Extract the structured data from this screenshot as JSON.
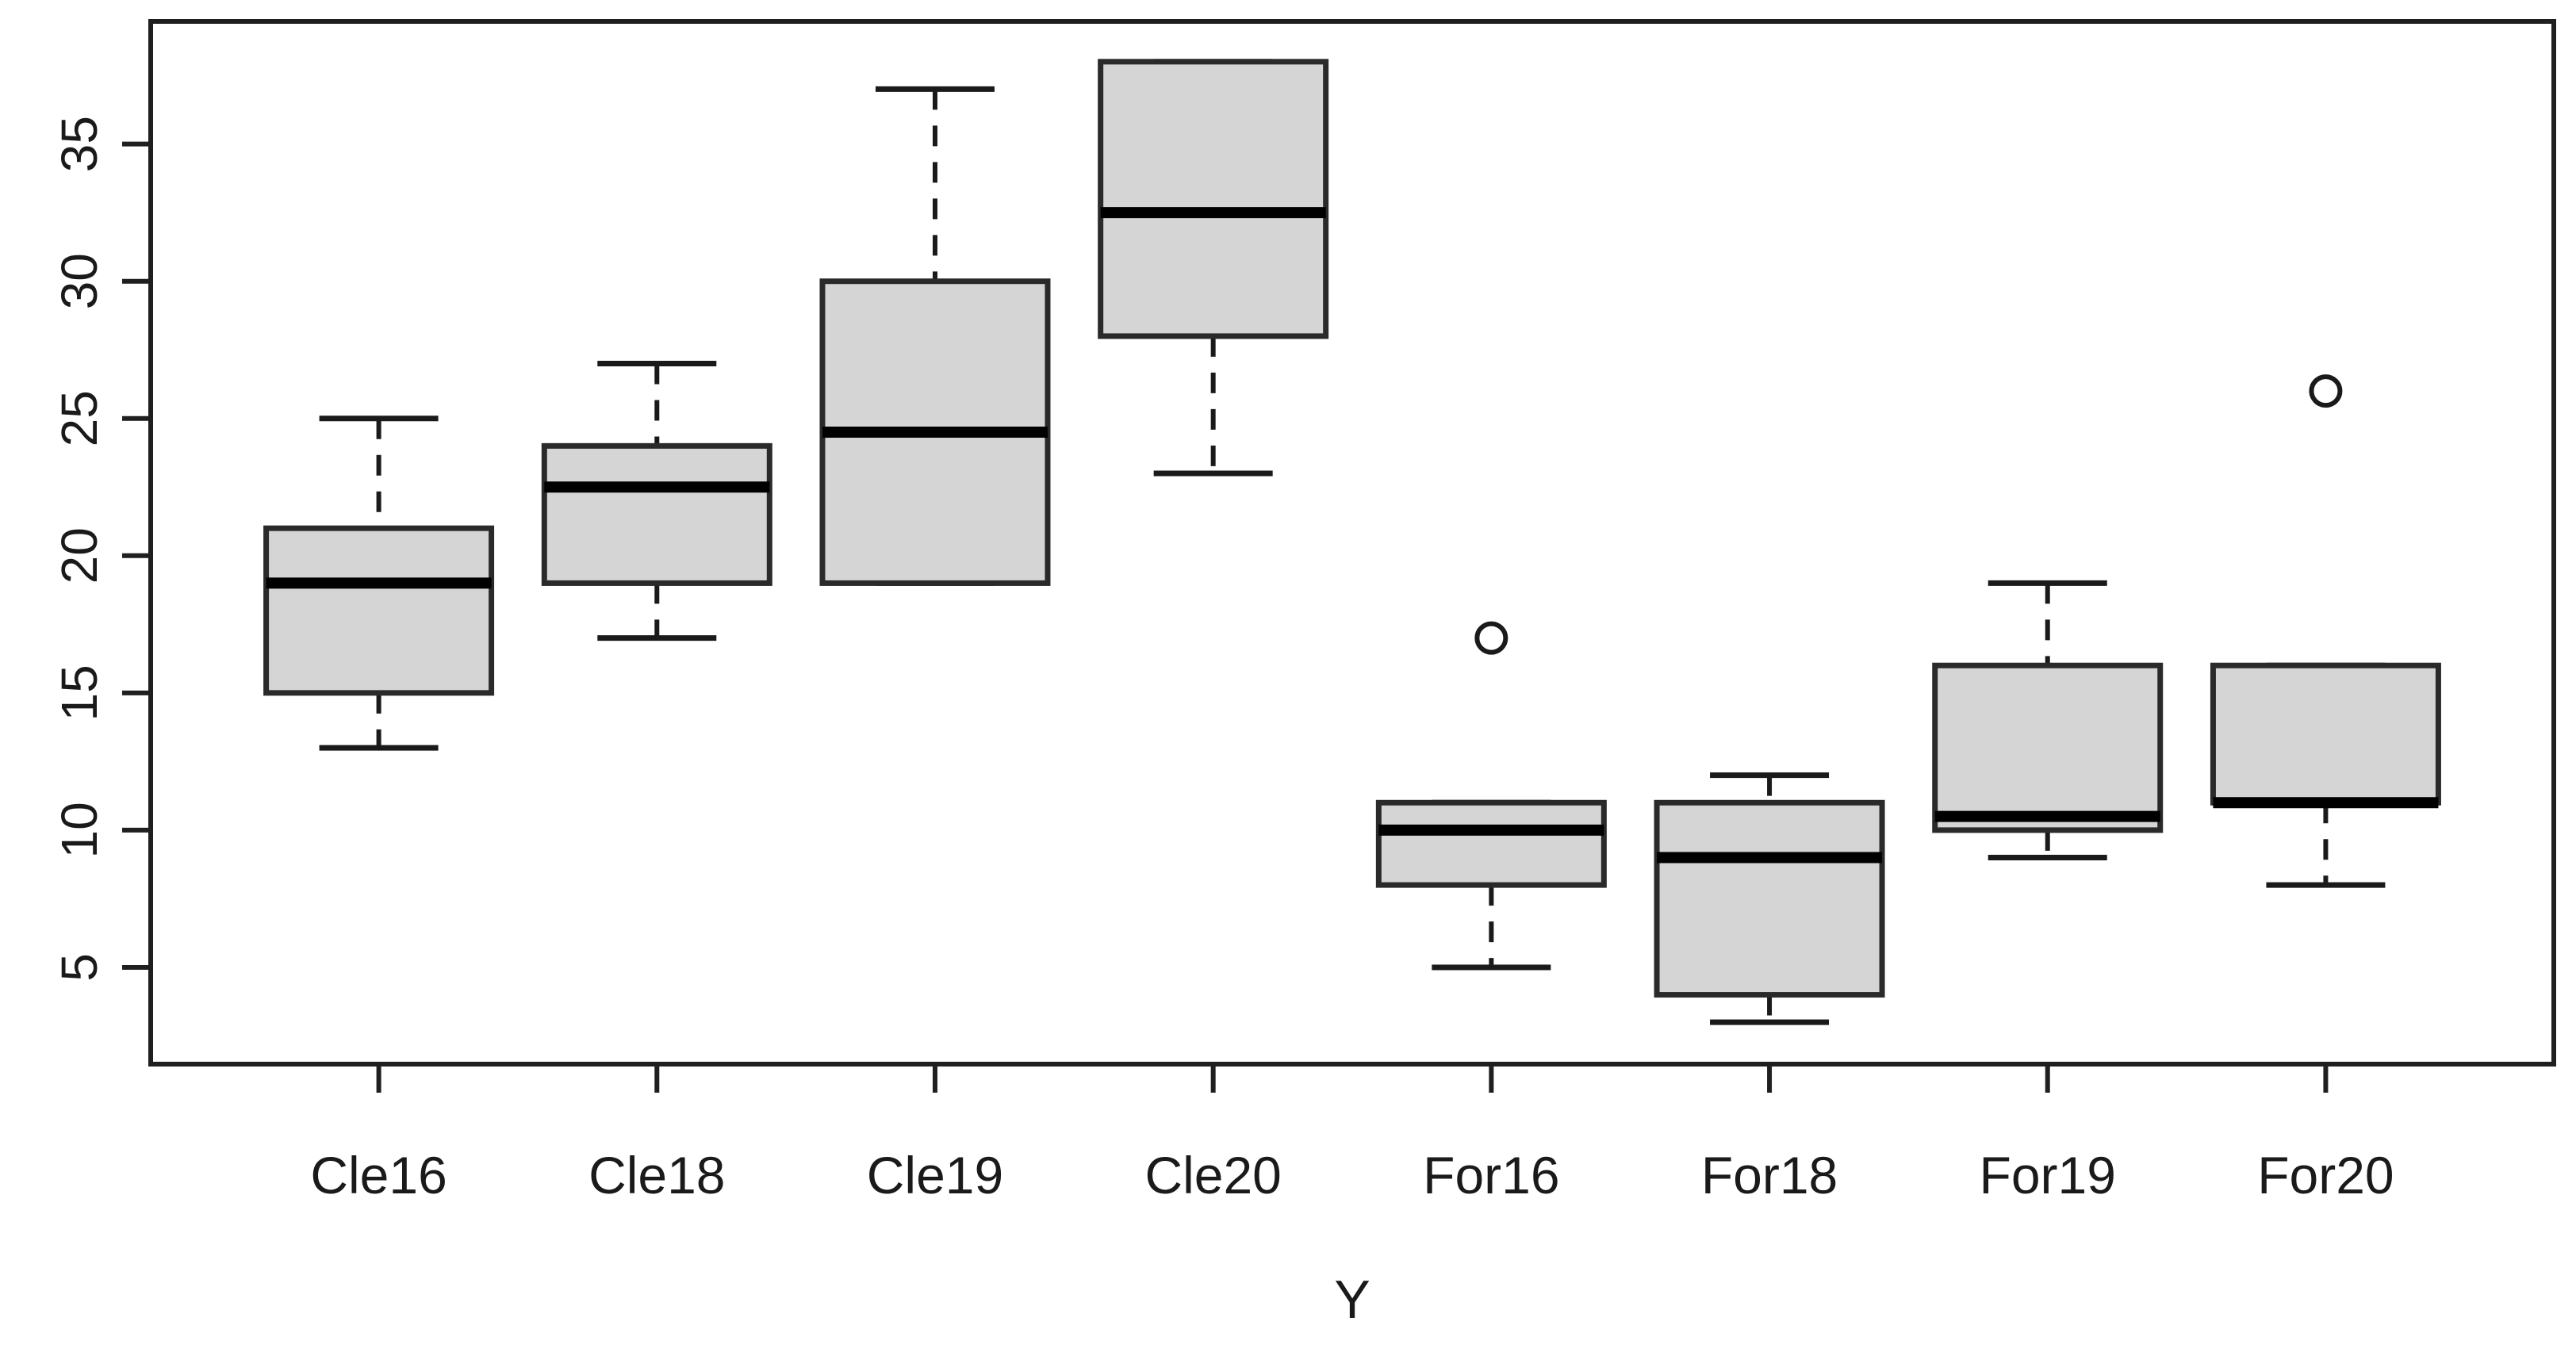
{
  "chart_data": {
    "type": "boxplot",
    "title": "",
    "xlabel": "Y",
    "ylabel": "",
    "categories": [
      "Cle16",
      "Cle18",
      "Cle19",
      "Cle20",
      "For16",
      "For18",
      "For19",
      "For20"
    ],
    "y_ticks": [
      5,
      10,
      15,
      20,
      25,
      30,
      35
    ],
    "ylim": [
      1.6,
      39.4
    ],
    "grid": false,
    "legend": "none",
    "boxes": [
      {
        "label": "Cle16",
        "whisker_low": 13,
        "q1": 15,
        "median": 19,
        "q3": 21,
        "whisker_high": 25,
        "outliers": []
      },
      {
        "label": "Cle18",
        "whisker_low": 17,
        "q1": 19,
        "median": 22.5,
        "q3": 24,
        "whisker_high": 27,
        "outliers": []
      },
      {
        "label": "Cle19",
        "whisker_low": 19,
        "q1": 19,
        "median": 24.5,
        "q3": 30,
        "whisker_high": 37,
        "outliers": []
      },
      {
        "label": "Cle20",
        "whisker_low": 23,
        "q1": 28,
        "median": 32.5,
        "q3": 38,
        "whisker_high": 38,
        "outliers": []
      },
      {
        "label": "For16",
        "whisker_low": 5,
        "q1": 8,
        "median": 10,
        "q3": 11,
        "whisker_high": 11,
        "outliers": [
          17
        ]
      },
      {
        "label": "For18",
        "whisker_low": 3,
        "q1": 4,
        "median": 9,
        "q3": 11,
        "whisker_high": 12,
        "outliers": []
      },
      {
        "label": "For19",
        "whisker_low": 9,
        "q1": 10,
        "median": 10.5,
        "q3": 16,
        "whisker_high": 19,
        "outliers": []
      },
      {
        "label": "For20",
        "whisker_low": 8,
        "q1": 11,
        "median": 11,
        "q3": 16,
        "whisker_high": 16,
        "outliers": [
          26
        ]
      }
    ],
    "colors": {
      "background": "#ffffff",
      "box_fill": "#d5d5d5",
      "box_border": "#2a2a2a",
      "median": "#000000",
      "axis": "#1f1f1f",
      "whisker": "#1a1a1a"
    }
  }
}
